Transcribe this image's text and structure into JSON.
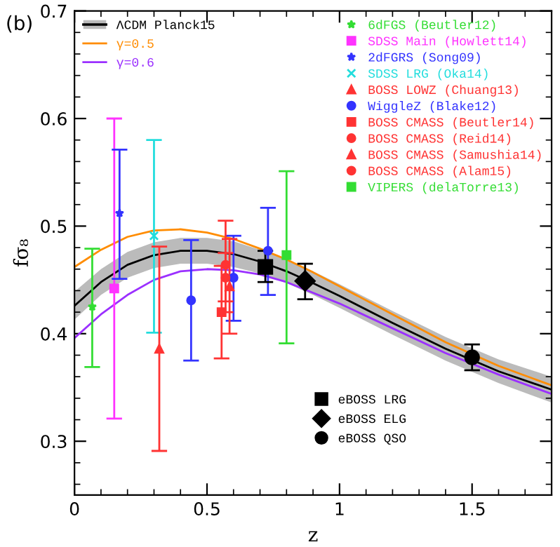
{
  "chart_data": {
    "type": "scatter",
    "xlabel": "z",
    "ylabel": "fσ₈",
    "annotations": [
      "(b)"
    ],
    "xlim": [
      0,
      1.8
    ],
    "ylim": [
      0.25,
      0.7
    ],
    "xticks": [
      0,
      0.5,
      1,
      1.5
    ],
    "yticks": [
      0.3,
      0.4,
      0.5,
      0.6,
      0.7
    ],
    "legend": "top right",
    "grid": false,
    "series": [
      {
        "name": "ΛCDM Planck15",
        "type": "line",
        "color": "#000000",
        "x": [
          0,
          0.1,
          0.2,
          0.3,
          0.4,
          0.5,
          0.6,
          0.7,
          0.8,
          0.9,
          1.0,
          1.2,
          1.4,
          1.6,
          1.8
        ],
        "values": [
          0.426,
          0.448,
          0.464,
          0.473,
          0.477,
          0.477,
          0.474,
          0.467,
          0.458,
          0.447,
          0.435,
          0.41,
          0.386,
          0.365,
          0.348
        ],
        "lower": [
          0.413,
          0.436,
          0.452,
          0.461,
          0.465,
          0.465,
          0.462,
          0.456,
          0.447,
          0.436,
          0.424,
          0.399,
          0.375,
          0.354,
          0.336
        ],
        "upper": [
          0.439,
          0.46,
          0.476,
          0.485,
          0.489,
          0.489,
          0.486,
          0.478,
          0.469,
          0.458,
          0.446,
          0.421,
          0.397,
          0.376,
          0.36
        ]
      },
      {
        "name": "γ=0.5",
        "type": "line",
        "color": "#ff8c00",
        "x": [
          0,
          0.1,
          0.2,
          0.3,
          0.4,
          0.5,
          0.6,
          0.7,
          0.8,
          0.9,
          1.0,
          1.2,
          1.4,
          1.6,
          1.8
        ],
        "values": [
          0.462,
          0.478,
          0.49,
          0.496,
          0.497,
          0.494,
          0.488,
          0.479,
          0.469,
          0.457,
          0.444,
          0.418,
          0.392,
          0.37,
          0.352
        ]
      },
      {
        "name": "γ=0.6",
        "type": "line",
        "color": "#9b30ff",
        "x": [
          0,
          0.1,
          0.2,
          0.3,
          0.4,
          0.5,
          0.6,
          0.7,
          0.8,
          0.9,
          1.0,
          1.2,
          1.4,
          1.6,
          1.8
        ],
        "values": [
          0.396,
          0.418,
          0.436,
          0.45,
          0.458,
          0.46,
          0.459,
          0.455,
          0.448,
          0.438,
          0.428,
          0.405,
          0.382,
          0.362,
          0.344
        ]
      },
      {
        "name": "6dFGS (Beutler12)",
        "color": "#33dd33",
        "marker": "star",
        "x": [
          0.067
        ],
        "values": [
          0.425
        ],
        "errors": [
          [
            0.369,
            0.479
          ]
        ]
      },
      {
        "name": "SDSS Main (Howlett14)",
        "color": "#ff33ff",
        "marker": "square",
        "x": [
          0.15
        ],
        "values": [
          0.442
        ],
        "errors": [
          [
            0.321,
            0.6
          ]
        ]
      },
      {
        "name": "2dFGRS (Song09)",
        "color": "#3333ff",
        "marker": "star",
        "x": [
          0.17
        ],
        "values": [
          0.512
        ],
        "errors": [
          [
            0.451,
            0.571
          ]
        ]
      },
      {
        "name": "SDSS LRG (Oka14)",
        "color": "#22dddd",
        "marker": "cross",
        "x": [
          0.3
        ],
        "values": [
          0.491
        ],
        "errors": [
          [
            0.401,
            0.58
          ]
        ]
      },
      {
        "name": "BOSS LOWZ (Chuang13)",
        "color": "#ff3333",
        "marker": "triangle",
        "x": [
          0.32
        ],
        "values": [
          0.386
        ],
        "errors": [
          [
            0.291,
            0.481
          ]
        ]
      },
      {
        "name": "WiggleZ (Blake12)",
        "color": "#3333ff",
        "marker": "circle",
        "x": [
          0.44,
          0.6,
          0.73
        ],
        "values": [
          0.431,
          0.452,
          0.477
        ],
        "errors": [
          [
            0.375,
            0.487
          ],
          [
            0.412,
            0.491
          ],
          [
            0.436,
            0.517
          ]
        ]
      },
      {
        "name": "BOSS CMASS (Beutler14)",
        "color": "#ff3333",
        "marker": "square",
        "x": [
          0.555
        ],
        "values": [
          0.42
        ],
        "errors": [
          [
            0.377,
            0.463
          ]
        ]
      },
      {
        "name": "BOSS CMASS (Reid14)",
        "color": "#ff3333",
        "marker": "circle",
        "x": [
          0.57
        ],
        "values": [
          0.464
        ],
        "errors": [
          [
            0.42,
            0.505
          ]
        ]
      },
      {
        "name": "BOSS CMASS (Samushia14)",
        "color": "#ff3333",
        "marker": "triangle",
        "x": [
          0.585
        ],
        "values": [
          0.444
        ],
        "errors": [
          [
            0.4,
            0.488
          ]
        ]
      },
      {
        "name": "BOSS CMASS (Alam15)",
        "color": "#ff3333",
        "marker": "circle",
        "x": [
          0.57
        ],
        "values": [
          0.452
        ],
        "errors": [
          [
            0.43,
            0.475
          ]
        ]
      },
      {
        "name": "VIPERS (delaTorre13)",
        "color": "#33dd33",
        "marker": "square",
        "x": [
          0.8
        ],
        "values": [
          0.473
        ],
        "errors": [
          [
            0.391,
            0.551
          ]
        ]
      },
      {
        "name": "eBOSS LRG",
        "color": "#000000",
        "marker": "square",
        "x": [
          0.72
        ],
        "values": [
          0.462
        ],
        "errors": [
          [
            0.448,
            0.477
          ]
        ]
      },
      {
        "name": "eBOSS ELG",
        "color": "#000000",
        "marker": "diamond",
        "x": [
          0.87
        ],
        "values": [
          0.449
        ],
        "errors": [
          [
            0.432,
            0.465
          ]
        ]
      },
      {
        "name": "eBOSS QSO",
        "color": "#000000",
        "marker": "circle",
        "x": [
          1.5
        ],
        "values": [
          0.378
        ],
        "errors": [
          [
            0.366,
            0.39
          ]
        ]
      }
    ]
  }
}
